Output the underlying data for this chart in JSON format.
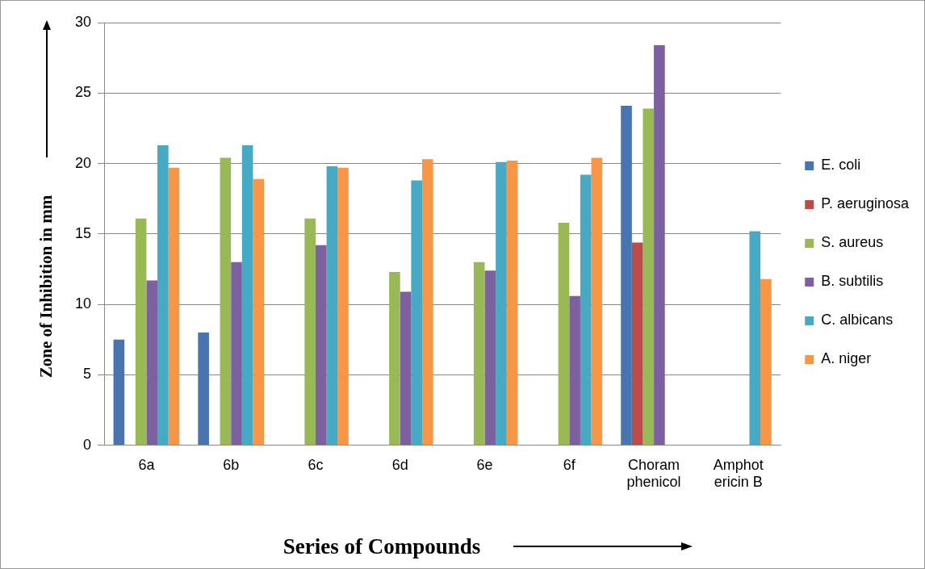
{
  "chart_data": {
    "type": "bar",
    "xlabel": "Series of Compounds",
    "ylabel": "Zone of Inhibition in mm",
    "categories": [
      "6a",
      "6b",
      "6c",
      "6d",
      "6e",
      "6f",
      "Choram\nphenicol",
      "Amphot\nericin B"
    ],
    "series": [
      {
        "name": "E. coli",
        "color": "#4a74b0",
        "values": [
          7.5,
          8.0,
          null,
          null,
          null,
          null,
          24.1,
          null
        ]
      },
      {
        "name": "P. aeruginosa",
        "color": "#be4b48",
        "values": [
          null,
          null,
          null,
          null,
          null,
          null,
          14.4,
          null
        ]
      },
      {
        "name": "S. aureus",
        "color": "#98b955",
        "values": [
          16.1,
          20.4,
          16.1,
          12.3,
          13.0,
          15.8,
          23.9,
          null
        ]
      },
      {
        "name": "B. subtilis",
        "color": "#7d60a0",
        "values": [
          11.7,
          13.0,
          14.2,
          10.9,
          12.4,
          10.6,
          28.4,
          null
        ]
      },
      {
        "name": "C. albicans",
        "color": "#46aac5",
        "values": [
          21.3,
          21.3,
          19.8,
          18.8,
          20.1,
          19.2,
          null,
          15.2
        ]
      },
      {
        "name": "A. niger",
        "color": "#f79646",
        "values": [
          19.7,
          18.9,
          19.7,
          20.3,
          20.2,
          20.4,
          null,
          11.8
        ]
      }
    ],
    "ylim": [
      0,
      30
    ],
    "yticks": [
      0,
      5,
      10,
      15,
      20,
      25,
      30
    ],
    "grid": "y",
    "legend": "right"
  }
}
